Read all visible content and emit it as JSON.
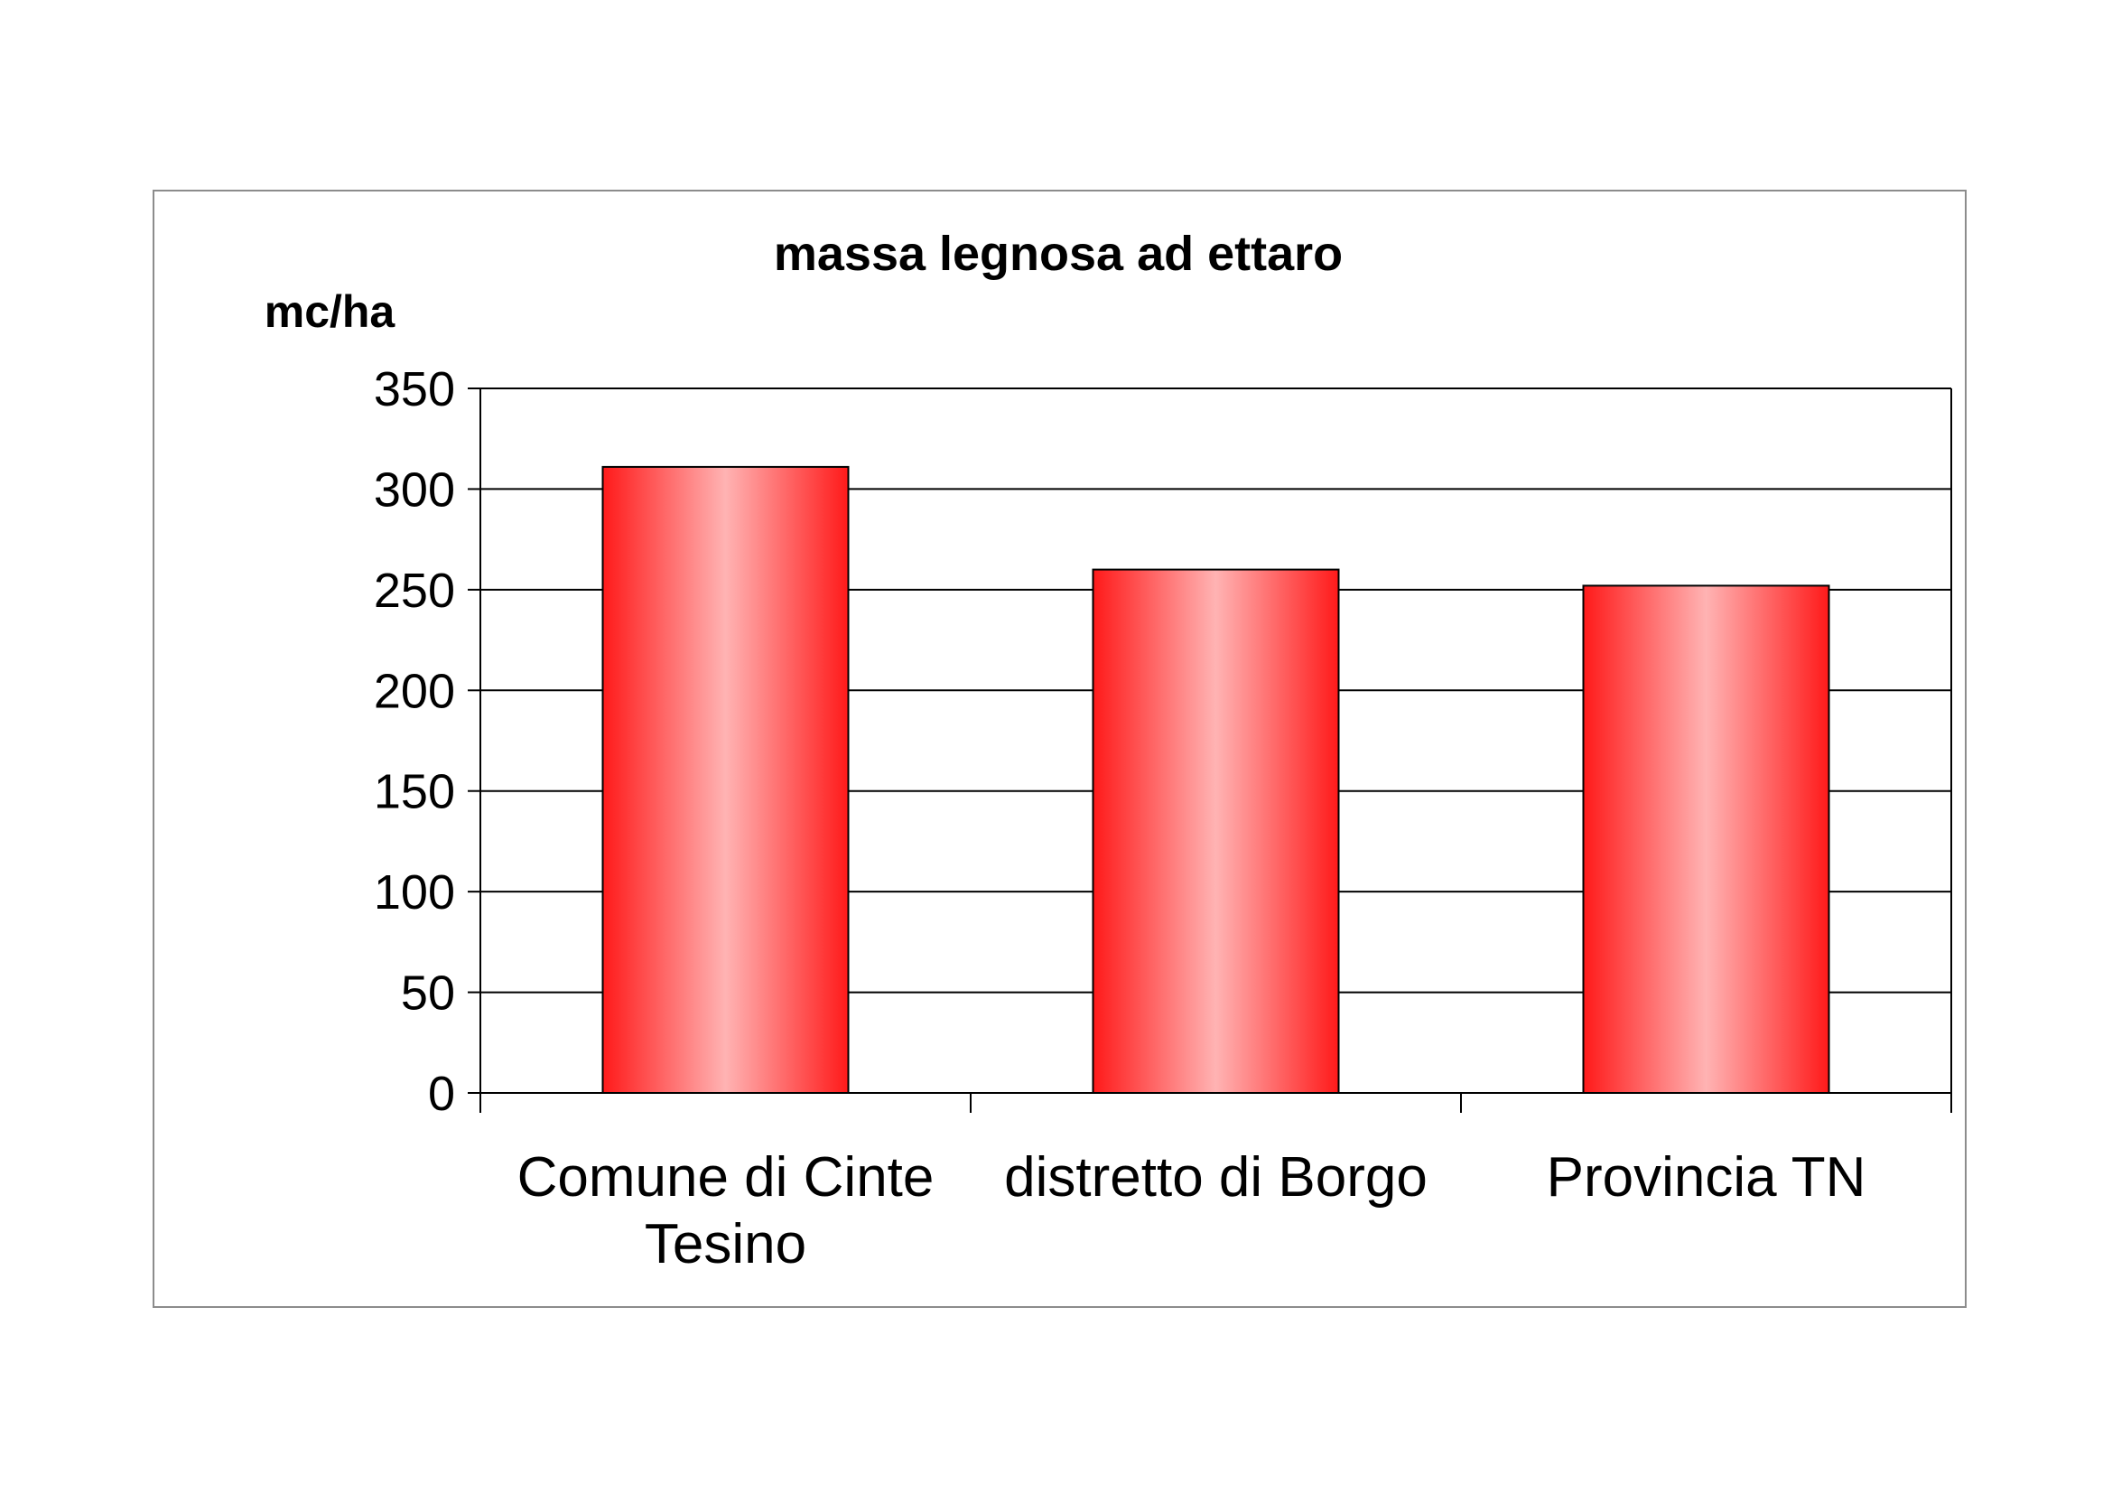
{
  "chart_data": {
    "type": "bar",
    "title": "massa legnosa ad ettaro",
    "ylabel": "mc/ha",
    "xlabel": "",
    "categories": [
      [
        "Comune di Cinte",
        "Tesino"
      ],
      [
        "distretto di Borgo"
      ],
      [
        "Provincia TN"
      ]
    ],
    "values": [
      311,
      260,
      252
    ],
    "ylim": [
      0,
      350
    ],
    "yticks": [
      "0",
      "50",
      "100",
      "150",
      "200",
      "250",
      "300",
      "350"
    ],
    "grid": true,
    "legend": "none",
    "colors": {
      "bar_edge": "#ff1a1a",
      "bar_center": "#ffb3b3",
      "bar_outline": "#000000",
      "gridline": "#000000"
    }
  }
}
